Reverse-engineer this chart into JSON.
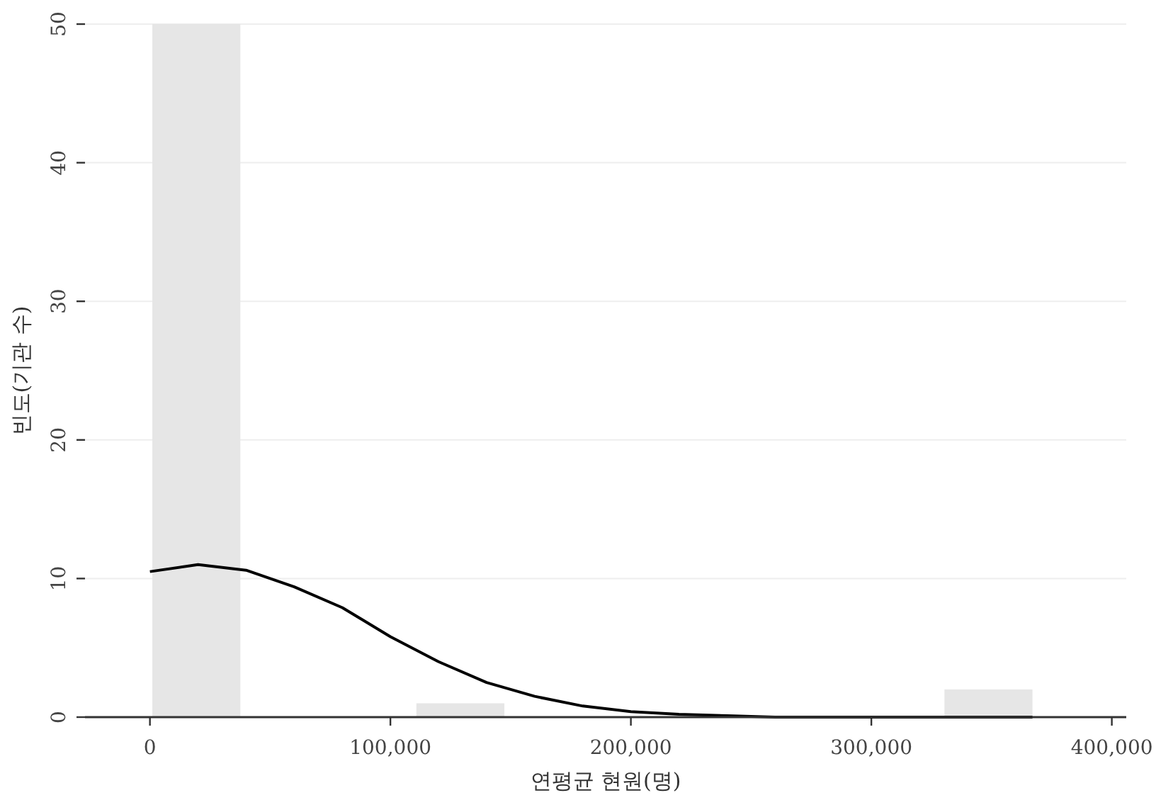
{
  "chart_data": {
    "type": "histogram",
    "xlabel": "연평균 현원(명)",
    "ylabel": "빈도(기관 수)",
    "bins": [
      1000,
      37600,
      74200,
      110800,
      147400,
      184000,
      220600,
      257200,
      293800,
      330400,
      367000
    ],
    "series": [
      {
        "color": "#e6e6e6",
        "values": [
          50,
          0,
          0,
          1,
          0,
          0,
          0,
          0,
          0,
          2
        ]
      },
      {
        "type": "line",
        "color": "#000000",
        "x": [
          0,
          20000,
          40000,
          60000,
          80000,
          100000,
          120000,
          140000,
          160000,
          180000,
          200000,
          220000,
          240000,
          260000,
          280000,
          300000,
          330000,
          367000
        ],
        "values": [
          10.5,
          11.0,
          10.6,
          9.4,
          7.9,
          5.8,
          4.0,
          2.5,
          1.5,
          0.8,
          0.4,
          0.2,
          0.1,
          0,
          0,
          0,
          0,
          0
        ]
      }
    ],
    "xlim": [
      -27000,
      406000
    ],
    "ylim": [
      0,
      50
    ],
    "xticks": [
      {
        "value": 0,
        "label": "0"
      },
      {
        "value": 100000,
        "label": "100,000"
      },
      {
        "value": 200000,
        "label": "200,000"
      },
      {
        "value": 300000,
        "label": "300,000"
      },
      {
        "value": 400000,
        "label": "400,000"
      }
    ],
    "yticks": [
      0,
      10,
      20,
      30,
      40,
      50
    ],
    "grid": "y"
  }
}
